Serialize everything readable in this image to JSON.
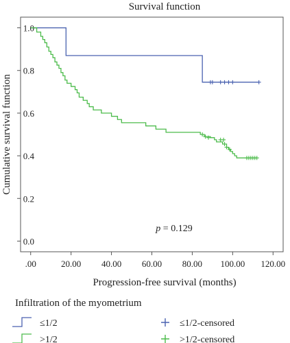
{
  "chart_data": {
    "type": "line",
    "title": "Survival function",
    "xlabel": "Progression-free survival (months)",
    "ylabel": "Cumulative survival function",
    "xlim": [
      -5,
      125
    ],
    "ylim": [
      -0.05,
      1.05
    ],
    "x_ticks": [
      0,
      20,
      40,
      60,
      80,
      100,
      120
    ],
    "x_tick_labels": [
      ".00",
      "20.00",
      "40.00",
      "60.00",
      "80.00",
      "100.00",
      "120.00"
    ],
    "y_ticks": [
      0,
      0.2,
      0.4,
      0.6,
      0.8,
      1.0
    ],
    "y_tick_labels": [
      "0.0",
      "0.2",
      "0.4",
      "0.6",
      "0.8",
      "1.0"
    ],
    "annotation_p_symbol": "p",
    "annotation_p_value": " = 0.129",
    "grid": false,
    "legend_title": "Infiltration of the myometrium",
    "legend_placement": "bottom",
    "series": [
      {
        "name": "≤1/2",
        "censored_label": "≤1/2-censored",
        "color": "#4a62b0",
        "steps": [
          [
            0,
            1.0
          ],
          [
            17.5,
            0.87
          ],
          [
            85,
            0.745
          ],
          [
            113,
            0.745
          ]
        ],
        "censored": [
          [
            89,
            0.745
          ],
          [
            90,
            0.745
          ],
          [
            94,
            0.745
          ],
          [
            96,
            0.745
          ],
          [
            98,
            0.745
          ],
          [
            100,
            0.745
          ],
          [
            113,
            0.745
          ]
        ]
      },
      {
        "name": ">1/2",
        "censored_label": ">1/2-censored",
        "color": "#4bbb4a",
        "steps": [
          [
            0,
            1.0
          ],
          [
            3,
            0.98
          ],
          [
            5,
            0.96
          ],
          [
            6,
            0.945
          ],
          [
            7,
            0.93
          ],
          [
            8,
            0.91
          ],
          [
            9,
            0.89
          ],
          [
            10,
            0.875
          ],
          [
            11,
            0.86
          ],
          [
            12,
            0.84
          ],
          [
            13,
            0.825
          ],
          [
            14,
            0.81
          ],
          [
            15,
            0.79
          ],
          [
            16,
            0.775
          ],
          [
            17,
            0.755
          ],
          [
            18,
            0.74
          ],
          [
            20,
            0.725
          ],
          [
            22,
            0.71
          ],
          [
            23,
            0.695
          ],
          [
            24,
            0.675
          ],
          [
            26,
            0.66
          ],
          [
            28,
            0.645
          ],
          [
            29,
            0.63
          ],
          [
            31,
            0.615
          ],
          [
            35,
            0.6
          ],
          [
            40,
            0.585
          ],
          [
            43,
            0.57
          ],
          [
            45,
            0.555
          ],
          [
            57,
            0.54
          ],
          [
            62,
            0.525
          ],
          [
            67,
            0.51
          ],
          [
            84,
            0.5
          ],
          [
            86,
            0.49
          ],
          [
            89,
            0.485
          ],
          [
            91,
            0.475
          ],
          [
            92,
            0.465
          ],
          [
            95,
            0.455
          ],
          [
            97,
            0.44
          ],
          [
            98,
            0.43
          ],
          [
            99,
            0.42
          ],
          [
            100,
            0.41
          ],
          [
            101,
            0.4
          ],
          [
            102,
            0.39
          ],
          [
            112,
            0.39
          ]
        ],
        "censored": [
          [
            85,
            0.5
          ],
          [
            86.5,
            0.49
          ],
          [
            88,
            0.485
          ],
          [
            94,
            0.475
          ],
          [
            95.5,
            0.475
          ],
          [
            96,
            0.455
          ],
          [
            97,
            0.44
          ],
          [
            98.5,
            0.43
          ],
          [
            107,
            0.39
          ],
          [
            108,
            0.39
          ],
          [
            109,
            0.39
          ],
          [
            110,
            0.39
          ],
          [
            111,
            0.39
          ],
          [
            112,
            0.39
          ]
        ]
      }
    ]
  }
}
